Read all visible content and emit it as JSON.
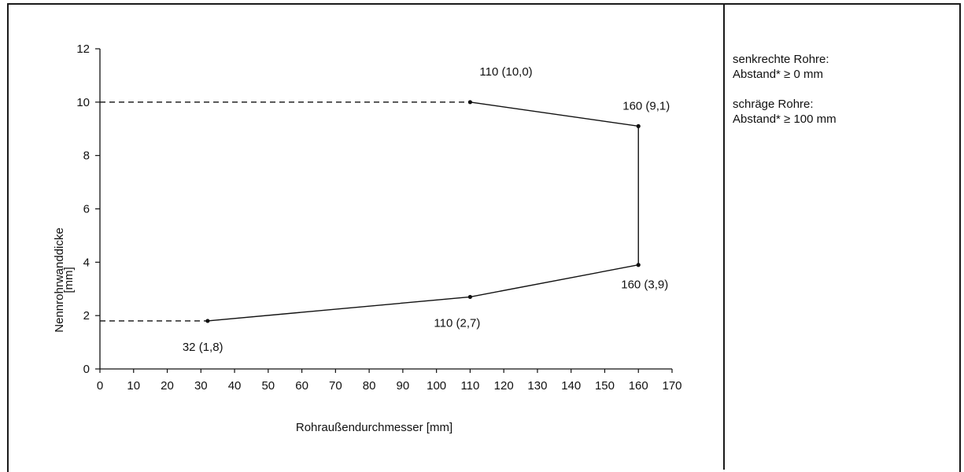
{
  "chart_data": {
    "type": "line",
    "xlabel": "Rohraußendurchmesser [mm]",
    "ylabel": [
      "Nennrohrwanddicke",
      "[mm]"
    ],
    "xlim": [
      0,
      170
    ],
    "ylim": [
      0,
      12
    ],
    "xticks": [
      0,
      10,
      20,
      30,
      40,
      50,
      60,
      70,
      80,
      90,
      100,
      110,
      120,
      130,
      140,
      150,
      160,
      170
    ],
    "yticks": [
      0,
      2,
      4,
      6,
      8,
      10,
      12
    ],
    "grid": false,
    "dashed_extensions": [
      {
        "x": [
          0,
          110
        ],
        "y": [
          10.0,
          10.0
        ]
      },
      {
        "x": [
          0,
          32
        ],
        "y": [
          1.8,
          1.8
        ]
      }
    ],
    "series": [
      {
        "x": [
          110,
          160,
          160,
          110,
          32
        ],
        "y": [
          10.0,
          9.1,
          3.9,
          2.7,
          1.8
        ]
      }
    ],
    "annotations": [
      {
        "text": "110 (10,0)",
        "x": 110,
        "y": 10.0,
        "placement": "above"
      },
      {
        "text": "160 (9,1)",
        "x": 160,
        "y": 9.1,
        "placement": "above"
      },
      {
        "text": "160 (3,9)",
        "x": 160,
        "y": 3.9,
        "placement": "below"
      },
      {
        "text": "110 (2,7)",
        "x": 110,
        "y": 2.7,
        "placement": "below"
      },
      {
        "text": "32 (1,8)",
        "x": 32,
        "y": 1.8,
        "placement": "below"
      }
    ]
  },
  "notes": [
    {
      "title": "senkrechte Rohre:",
      "text": "Abstand* ≥ 0 mm"
    },
    {
      "title": "schräge Rohre:",
      "text": "Abstand* ≥ 100 mm"
    }
  ]
}
